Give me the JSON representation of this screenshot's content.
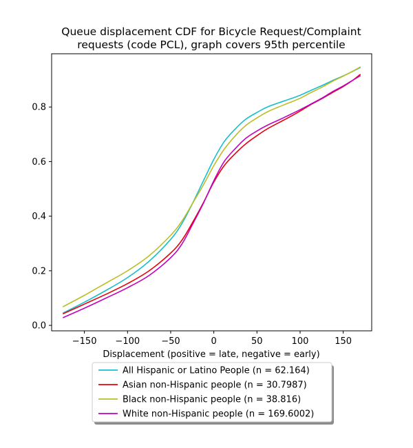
{
  "chart_data": {
    "type": "line",
    "title_lines": [
      "Queue displacement CDF for Bicycle Request/Complaint",
      "requests (code PCL), graph covers 95th percentile"
    ],
    "xlabel": "Displacement (positive = late, negative = early)",
    "ylabel": "",
    "xlim": [
      -188,
      183
    ],
    "ylim": [
      -0.02,
      0.995
    ],
    "xticks": [
      -150,
      -100,
      -50,
      0,
      50,
      100,
      150
    ],
    "xtick_labels": [
      "−150",
      "−100",
      "−50",
      "0",
      "50",
      "100",
      "150"
    ],
    "yticks": [
      0.0,
      0.2,
      0.4,
      0.6,
      0.8
    ],
    "ytick_labels": [
      "0.0",
      "0.2",
      "0.4",
      "0.6",
      "0.8"
    ],
    "grid": false,
    "legend_position": "below",
    "series": [
      {
        "name": "All Hispanic or Latino People (n = 62.164)",
        "color": "#17becf",
        "points": [
          [
            -175,
            0.045
          ],
          [
            -150,
            0.085
          ],
          [
            -125,
            0.128
          ],
          [
            -100,
            0.175
          ],
          [
            -75,
            0.235
          ],
          [
            -50,
            0.315
          ],
          [
            -37,
            0.373
          ],
          [
            -25,
            0.445
          ],
          [
            -12,
            0.53
          ],
          [
            0,
            0.608
          ],
          [
            12,
            0.673
          ],
          [
            25,
            0.72
          ],
          [
            37,
            0.755
          ],
          [
            50,
            0.78
          ],
          [
            62,
            0.8
          ],
          [
            75,
            0.815
          ],
          [
            87,
            0.828
          ],
          [
            100,
            0.843
          ],
          [
            112,
            0.86
          ],
          [
            125,
            0.878
          ],
          [
            137,
            0.896
          ],
          [
            150,
            0.914
          ],
          [
            162,
            0.932
          ],
          [
            170,
            0.945
          ]
        ]
      },
      {
        "name": "Asian non-Hispanic people (n = 30.7987)",
        "color": "#e8000b",
        "points": [
          [
            -175,
            0.042
          ],
          [
            -150,
            0.078
          ],
          [
            -125,
            0.114
          ],
          [
            -100,
            0.153
          ],
          [
            -75,
            0.2
          ],
          [
            -50,
            0.265
          ],
          [
            -37,
            0.312
          ],
          [
            -25,
            0.375
          ],
          [
            -12,
            0.45
          ],
          [
            0,
            0.525
          ],
          [
            12,
            0.585
          ],
          [
            25,
            0.63
          ],
          [
            37,
            0.665
          ],
          [
            50,
            0.695
          ],
          [
            62,
            0.72
          ],
          [
            75,
            0.742
          ],
          [
            87,
            0.762
          ],
          [
            100,
            0.785
          ],
          [
            112,
            0.808
          ],
          [
            125,
            0.83
          ],
          [
            137,
            0.852
          ],
          [
            150,
            0.875
          ],
          [
            162,
            0.9
          ],
          [
            170,
            0.92
          ]
        ]
      },
      {
        "name": "Black non-Hispanic people (n = 38.816)",
        "color": "#bcbd22",
        "points": [
          [
            -175,
            0.068
          ],
          [
            -150,
            0.11
          ],
          [
            -125,
            0.155
          ],
          [
            -100,
            0.2
          ],
          [
            -75,
            0.255
          ],
          [
            -50,
            0.33
          ],
          [
            -37,
            0.382
          ],
          [
            -25,
            0.445
          ],
          [
            -12,
            0.515
          ],
          [
            0,
            0.585
          ],
          [
            12,
            0.645
          ],
          [
            25,
            0.695
          ],
          [
            37,
            0.732
          ],
          [
            50,
            0.76
          ],
          [
            62,
            0.782
          ],
          [
            75,
            0.8
          ],
          [
            87,
            0.815
          ],
          [
            100,
            0.832
          ],
          [
            112,
            0.852
          ],
          [
            125,
            0.872
          ],
          [
            137,
            0.893
          ],
          [
            150,
            0.913
          ],
          [
            162,
            0.933
          ],
          [
            170,
            0.947
          ]
        ]
      },
      {
        "name": "White non-Hispanic people (n = 169.6002)",
        "color": "#c000c0",
        "points": [
          [
            -175,
            0.028
          ],
          [
            -150,
            0.063
          ],
          [
            -125,
            0.1
          ],
          [
            -100,
            0.138
          ],
          [
            -75,
            0.183
          ],
          [
            -50,
            0.248
          ],
          [
            -37,
            0.298
          ],
          [
            -25,
            0.368
          ],
          [
            -12,
            0.448
          ],
          [
            0,
            0.53
          ],
          [
            12,
            0.6
          ],
          [
            25,
            0.648
          ],
          [
            37,
            0.685
          ],
          [
            50,
            0.712
          ],
          [
            62,
            0.733
          ],
          [
            75,
            0.752
          ],
          [
            87,
            0.77
          ],
          [
            100,
            0.79
          ],
          [
            112,
            0.81
          ],
          [
            125,
            0.832
          ],
          [
            137,
            0.855
          ],
          [
            150,
            0.877
          ],
          [
            162,
            0.9
          ],
          [
            170,
            0.915
          ]
        ]
      }
    ]
  }
}
